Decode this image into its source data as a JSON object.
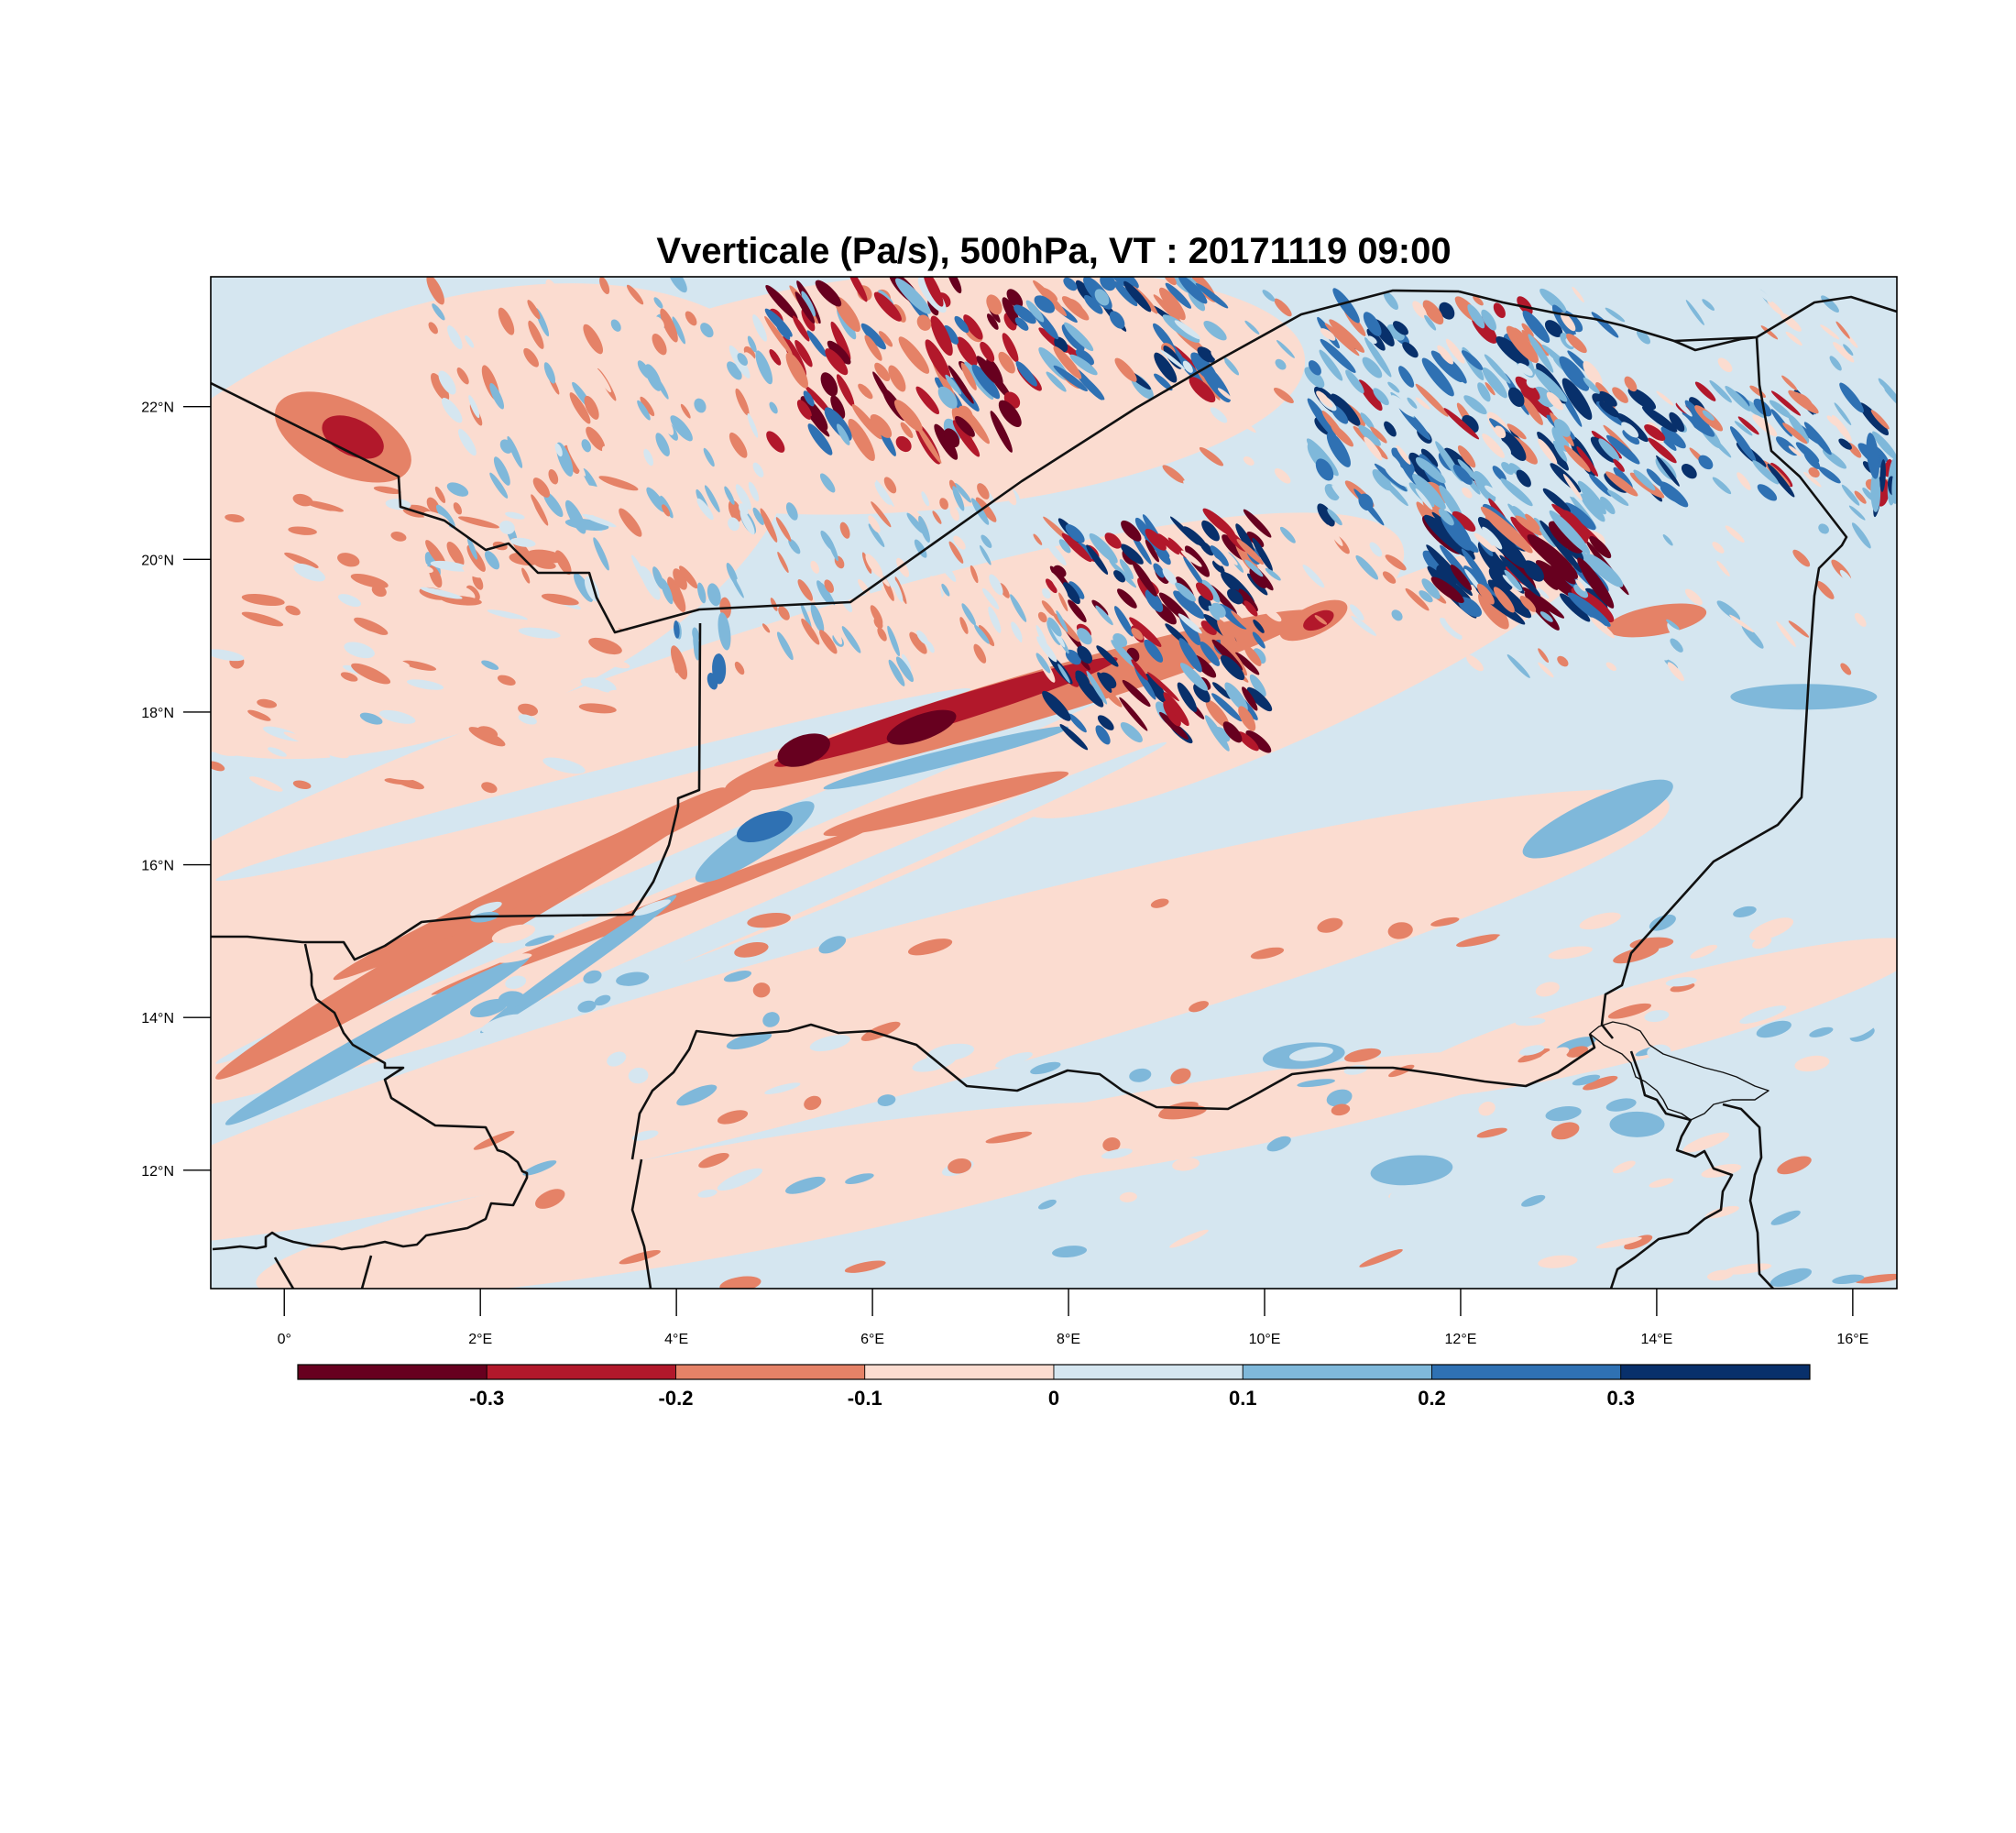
{
  "title": "Vverticale (Pa/s), 500hPa, VT : 20171119  09:00",
  "map": {
    "lon_range": [
      -0.75,
      16.45
    ],
    "lat_range": [
      10.45,
      23.7
    ],
    "lon_ticks": [
      {
        "value": 0,
        "label": "0°"
      },
      {
        "value": 2,
        "label": "2°E"
      },
      {
        "value": 4,
        "label": "4°E"
      },
      {
        "value": 6,
        "label": "6°E"
      },
      {
        "value": 8,
        "label": "8°E"
      },
      {
        "value": 10,
        "label": "10°E"
      },
      {
        "value": 12,
        "label": "12°E"
      },
      {
        "value": 14,
        "label": "14°E"
      },
      {
        "value": 16,
        "label": "16°E"
      }
    ],
    "lat_ticks": [
      {
        "value": 22,
        "label": "22°N"
      },
      {
        "value": 20,
        "label": "20°N"
      },
      {
        "value": 18,
        "label": "18°N"
      },
      {
        "value": 16,
        "label": "16°N"
      },
      {
        "value": 14,
        "label": "14°N"
      },
      {
        "value": 12,
        "label": "12°N"
      }
    ]
  },
  "colorbar": {
    "colors": [
      "#67001f",
      "#b2182b",
      "#e58267",
      "#fbdcd0",
      "#d5e6f0",
      "#7fb8da",
      "#2f71b3",
      "#08306b"
    ],
    "labels": [
      "-0.3",
      "-0.2",
      "-0.1",
      "0",
      "0.1",
      "0.2",
      "0.3"
    ]
  },
  "chart_data": {
    "type": "heatmap",
    "variable": "Vverticale (Pa/s)",
    "level": "500hPa",
    "valid_time": "20171119  09:00",
    "color_levels": [
      -0.3,
      -0.2,
      -0.1,
      0,
      0.1,
      0.2,
      0.3
    ],
    "features": [
      {
        "kind": "band",
        "sign": "negative",
        "lon": [
          -0.7,
          10.5
        ],
        "lat": [
          12.8,
          19.0
        ],
        "peak": -0.25
      },
      {
        "kind": "band",
        "sign": "negative",
        "lon": [
          0.5,
          8.5
        ],
        "lat": [
          14.5,
          18.5
        ],
        "peak": -0.2
      },
      {
        "kind": "band",
        "sign": "positive",
        "lon": [
          -0.6,
          9.0
        ],
        "lat": [
          12.5,
          18.0
        ],
        "peak": 0.15
      },
      {
        "kind": "blob",
        "sign": "negative",
        "lon": 0.6,
        "lat": 21.6,
        "peak": -0.25
      },
      {
        "kind": "blob",
        "sign": "positive",
        "lon": 4.9,
        "lat": 16.5,
        "peak": 0.2
      },
      {
        "kind": "blob",
        "sign": "negative",
        "lon": 5.2,
        "lat": 17.5,
        "peak": -0.3
      },
      {
        "kind": "wave-packet",
        "sign": "mixed",
        "lon": [
          5.0,
          7.5
        ],
        "lat": [
          21.5,
          23.7
        ],
        "peak": 0.35
      },
      {
        "kind": "wave-packet",
        "sign": "mixed",
        "lon": [
          7.8,
          10.0
        ],
        "lat": [
          17.6,
          20.5
        ],
        "peak": 0.35
      },
      {
        "kind": "wave-packet",
        "sign": "mixed",
        "lon": [
          11.8,
          13.5
        ],
        "lat": [
          19.3,
          20.5
        ],
        "peak": 0.35
      },
      {
        "kind": "wave-packet",
        "sign": "positive",
        "lon": [
          10.5,
          13.5
        ],
        "lat": [
          20.5,
          23.4
        ],
        "peak": 0.3
      },
      {
        "kind": "wave-packet",
        "sign": "positive",
        "lon": [
          13.5,
          16.4
        ],
        "lat": [
          21.0,
          22.2
        ],
        "peak": 0.3
      },
      {
        "kind": "blob",
        "sign": "negative",
        "lon": 10.5,
        "lat": 19.2,
        "peak": -0.2
      },
      {
        "kind": "blob",
        "sign": "positive",
        "lon": 16.4,
        "lat": 21.0,
        "peak": 0.35
      }
    ]
  }
}
